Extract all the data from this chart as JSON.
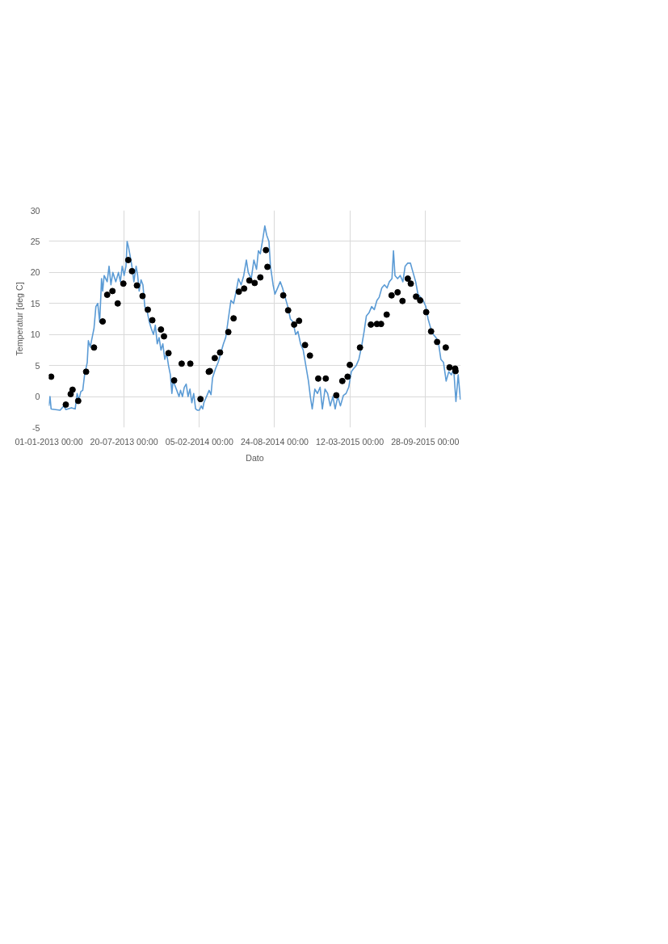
{
  "chart_data": {
    "type": "line",
    "xlabel": "Dato",
    "ylabel": "Temperatur [deg C]",
    "xlim": [
      "2013-01-01",
      "2016-01-01"
    ],
    "xticks": [
      {
        "value": "2013-01-01",
        "label": "01-01-2013 00:00"
      },
      {
        "value": "2013-07-20",
        "label": "20-07-2013 00:00"
      },
      {
        "value": "2014-02-05",
        "label": "05-02-2014 00:00"
      },
      {
        "value": "2014-08-24",
        "label": "24-08-2014 00:00"
      },
      {
        "value": "2015-03-12",
        "label": "12-03-2015 00:00"
      },
      {
        "value": "2015-09-28",
        "label": "28-09-2015 00:00"
      }
    ],
    "ylim": [
      -5,
      30
    ],
    "yticks": [
      -5,
      0,
      5,
      10,
      15,
      20,
      25,
      30
    ],
    "grid": true,
    "series": [
      {
        "color": "#5b9bd5",
        "line_style": "solid",
        "x": [
          "2013-01-01",
          "2013-01-04",
          "2013-01-07",
          "2013-01-31",
          "2013-02-10",
          "2013-02-15",
          "2013-03-02",
          "2013-03-12",
          "2013-03-17",
          "2013-03-22",
          "2013-03-27",
          "2013-04-01",
          "2013-04-06",
          "2013-04-13",
          "2013-04-16",
          "2013-04-21",
          "2013-04-26",
          "2013-05-01",
          "2013-05-06",
          "2013-05-11",
          "2013-05-16",
          "2013-05-19",
          "2013-05-21",
          "2013-05-24",
          "2013-05-28",
          "2013-06-05",
          "2013-06-10",
          "2013-06-15",
          "2013-06-20",
          "2013-06-28",
          "2013-07-05",
          "2013-07-10",
          "2013-07-15",
          "2013-07-20",
          "2013-07-25",
          "2013-07-28",
          "2013-08-01",
          "2013-08-07",
          "2013-08-11",
          "2013-08-15",
          "2013-08-21",
          "2013-08-25",
          "2013-08-29",
          "2013-09-03",
          "2013-09-08",
          "2013-09-13",
          "2013-09-20",
          "2013-09-25",
          "2013-09-30",
          "2013-10-06",
          "2013-10-11",
          "2013-10-16",
          "2013-10-21",
          "2013-10-26",
          "2013-10-31",
          "2013-11-05",
          "2013-11-10",
          "2013-11-15",
          "2013-11-20",
          "2013-11-24",
          "2013-11-27",
          "2013-12-02",
          "2013-12-07",
          "2013-12-13",
          "2013-12-17",
          "2013-12-22",
          "2013-12-27",
          "2014-01-01",
          "2014-01-06",
          "2014-01-11",
          "2014-01-16",
          "2014-01-21",
          "2014-01-26",
          "2014-01-31",
          "2014-02-05",
          "2014-02-10",
          "2014-02-14",
          "2014-02-17",
          "2014-02-24",
          "2014-03-03",
          "2014-03-08",
          "2014-03-12",
          "2014-03-20",
          "2014-03-27",
          "2014-04-03",
          "2014-04-10",
          "2014-04-16",
          "2014-04-23",
          "2014-04-30",
          "2014-05-07",
          "2014-05-14",
          "2014-05-20",
          "2014-05-27",
          "2014-06-03",
          "2014-06-10",
          "2014-06-15",
          "2014-06-23",
          "2014-06-30",
          "2014-07-07",
          "2014-07-12",
          "2014-07-17",
          "2014-07-24",
          "2014-07-29",
          "2014-08-03",
          "2014-08-09",
          "2014-08-13",
          "2014-08-20",
          "2014-08-25",
          "2014-09-01",
          "2014-09-08",
          "2014-09-14",
          "2014-09-21",
          "2014-09-28",
          "2014-10-05",
          "2014-10-12",
          "2014-10-19",
          "2014-10-25",
          "2014-11-01",
          "2014-11-08",
          "2014-11-15",
          "2014-11-22",
          "2014-11-27",
          "2014-12-02",
          "2014-12-09",
          "2014-12-16",
          "2014-12-23",
          "2014-12-29",
          "2015-01-05",
          "2015-01-12",
          "2015-01-19",
          "2015-01-26",
          "2015-02-01",
          "2015-02-08",
          "2015-02-15",
          "2015-02-23",
          "2015-03-02",
          "2015-03-09",
          "2015-03-16",
          "2015-03-22",
          "2015-03-29",
          "2015-04-05",
          "2015-04-12",
          "2015-04-19",
          "2015-04-25",
          "2015-05-02",
          "2015-05-09",
          "2015-05-16",
          "2015-05-23",
          "2015-05-29",
          "2015-06-05",
          "2015-06-12",
          "2015-06-19",
          "2015-06-25",
          "2015-07-02",
          "2015-07-06",
          "2015-07-10",
          "2015-07-17",
          "2015-07-24",
          "2015-07-31",
          "2015-08-06",
          "2015-08-13",
          "2015-08-20",
          "2015-08-27",
          "2015-09-03",
          "2015-09-09",
          "2015-09-16",
          "2015-09-23",
          "2015-09-30",
          "2015-10-06",
          "2015-10-13",
          "2015-10-20",
          "2015-10-27",
          "2015-11-03",
          "2015-11-09",
          "2015-11-16",
          "2015-11-23",
          "2015-11-30",
          "2015-12-07",
          "2015-12-13",
          "2015-12-19",
          "2015-12-25",
          "2015-12-31"
        ],
        "values": [
          -1.5,
          0,
          -2.0,
          -2.2,
          -1.5,
          -2.1,
          -1.8,
          -2.0,
          0.5,
          -0.5,
          0.8,
          1.0,
          3.5,
          5.5,
          9,
          8,
          9.5,
          11,
          14.5,
          15,
          12,
          16,
          19,
          17,
          19.5,
          18.5,
          21,
          18,
          20,
          18.5,
          20,
          18.5,
          21,
          19.5,
          21,
          25,
          24,
          22,
          20.5,
          18.5,
          21,
          19.5,
          17,
          18.8,
          18,
          14.5,
          13.5,
          12,
          11,
          10,
          11.5,
          8.5,
          9.5,
          7.5,
          8.5,
          6,
          7,
          5,
          3.5,
          0.5,
          2.5,
          1.8,
          1,
          0,
          1,
          0,
          1.5,
          2,
          0,
          1.2,
          -1,
          0.5,
          -2.0,
          -2.2,
          -2.2,
          -1.5,
          -2.0,
          -1.0,
          0,
          1,
          0.3,
          3,
          4.5,
          5.5,
          7,
          8.5,
          9.5,
          12.5,
          15.5,
          15,
          17,
          19,
          18,
          19.5,
          22,
          20,
          19,
          22,
          20.5,
          23.5,
          23,
          25.5,
          27.5,
          26,
          25,
          21,
          18,
          16.5,
          17.5,
          18.5,
          17.5,
          16,
          14.5,
          12.5,
          12,
          10,
          10.5,
          8.5,
          7.5,
          5,
          2.5,
          0,
          -2.0,
          1.2,
          0.5,
          1.5,
          -2,
          1.2,
          0.5,
          -1.5,
          0,
          -2,
          0,
          -1.5,
          0.2,
          0.5,
          1.5,
          4,
          4.5,
          5,
          6,
          8,
          10.5,
          13,
          13.5,
          14.5,
          14,
          15.5,
          16,
          17.5,
          18,
          17.5,
          18.5,
          19,
          23.5,
          19.5,
          19,
          19.5,
          18.5,
          21,
          21.5,
          21.5,
          20,
          18.5,
          16.5,
          16,
          15.5,
          14.5,
          12.5,
          11,
          10,
          9.5,
          8.5,
          6,
          5.5,
          2.5,
          4,
          3.5,
          4.5,
          -0.8,
          3.5,
          -0.5
        ]
      },
      {
        "type": "scatter",
        "color": "#000000",
        "marker": "circle",
        "x": [
          "2013-01-07",
          "2013-02-15",
          "2013-02-28",
          "2013-03-05",
          "2013-03-20",
          "2013-04-10",
          "2013-05-01",
          "2013-05-24",
          "2013-06-05",
          "2013-06-19",
          "2013-07-03",
          "2013-07-18",
          "2013-07-31",
          "2013-08-10",
          "2013-08-23",
          "2013-09-07",
          "2013-09-21",
          "2013-10-03",
          "2013-10-26",
          "2013-11-03",
          "2013-11-15",
          "2013-11-30",
          "2013-12-20",
          "2014-01-12",
          "2014-02-08",
          "2014-03-02",
          "2014-03-05",
          "2014-03-18",
          "2014-04-01",
          "2014-04-23",
          "2014-05-07",
          "2014-05-21",
          "2014-06-04",
          "2014-06-18",
          "2014-07-02",
          "2014-07-17",
          "2014-08-01",
          "2014-08-05",
          "2014-09-16",
          "2014-09-29",
          "2014-10-15",
          "2014-10-28",
          "2014-11-13",
          "2014-11-26",
          "2014-12-18",
          "2015-01-07",
          "2015-02-04",
          "2015-02-20",
          "2015-03-06",
          "2015-03-12",
          "2015-04-08",
          "2015-05-07",
          "2015-05-23",
          "2015-06-03",
          "2015-06-18",
          "2015-07-01",
          "2015-07-17",
          "2015-07-30",
          "2015-08-13",
          "2015-08-21",
          "2015-09-04",
          "2015-09-15",
          "2015-10-01",
          "2015-10-14",
          "2015-10-30",
          "2015-11-22",
          "2015-12-02",
          "2015-12-17",
          "2015-12-18"
        ],
        "values": [
          3.2,
          -1.3,
          0.4,
          1.1,
          -0.7,
          4.0,
          7.9,
          12.1,
          16.4,
          17.0,
          15.0,
          18.2,
          22.0,
          20.2,
          17.9,
          16.2,
          14.0,
          12.3,
          10.8,
          9.7,
          7.0,
          2.6,
          5.3,
          5.3,
          -0.4,
          4.0,
          4.1,
          6.2,
          7.1,
          10.4,
          12.6,
          16.9,
          17.4,
          18.7,
          18.3,
          19.2,
          23.6,
          20.9,
          16.3,
          13.9,
          11.6,
          12.2,
          8.3,
          6.6,
          2.9,
          2.9,
          0.2,
          2.5,
          3.2,
          5.1,
          7.9,
          11.6,
          11.7,
          11.7,
          13.2,
          16.3,
          16.8,
          15.4,
          19.0,
          18.2,
          16.1,
          15.5,
          13.6,
          10.5,
          8.8,
          7.9,
          4.7,
          4.5,
          4.1
        ]
      }
    ]
  }
}
